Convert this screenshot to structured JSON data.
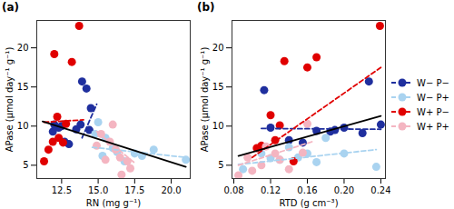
{
  "chart_data": [
    {
      "type": "scatter",
      "title": "(a)",
      "x_label": "RN (mg g⁻¹)",
      "y_label": "APase (µmol day⁻¹ g⁻¹)",
      "xlim": [
        10.8,
        21.3
      ],
      "xticks": [
        12.5,
        {
          "value": 15,
          "label": "15.0"
        },
        17.5,
        {
          "value": 20,
          "label": "20.0"
        }
      ],
      "ylim": [
        3.3,
        23.5
      ],
      "yticks": [
        5,
        10,
        15,
        20
      ],
      "series": [
        {
          "name": "W− P−",
          "color": "#1f2f9e",
          "marker": "circle",
          "x": [
            13.9,
            14.2,
            14.5,
            13.8,
            12.5,
            12.3,
            12.0,
            11.9,
            12.7,
            13.0,
            13.5,
            14.4
          ],
          "y": [
            15.7,
            14.8,
            12.3,
            10.2,
            10.0,
            9.8,
            10.2,
            9.3,
            8.0,
            7.7,
            9.6,
            9.5
          ],
          "fit": {
            "x": [
              13.9,
              14.9
            ],
            "y": [
              8.5,
              12.8
            ]
          },
          "line_style": "dashed"
        },
        {
          "name": "W− P+",
          "color": "#a9d3f0",
          "marker": "circle",
          "x": [
            15.0,
            14.8,
            15.5,
            16.0,
            16.3,
            17.5,
            18.0,
            18.8,
            21.0,
            15.3,
            16.8
          ],
          "y": [
            10.5,
            9.0,
            8.5,
            7.2,
            6.7,
            6.5,
            6.2,
            7.0,
            5.7,
            6.2,
            5.5
          ],
          "fit": {
            "x": [
              14.6,
              21.0
            ],
            "y": [
              7.3,
              6.0
            ]
          },
          "line_style": "dashed"
        },
        {
          "name": "W+ P−",
          "color": "#e00000",
          "marker": "circle",
          "x": [
            13.7,
            12.0,
            13.2,
            11.3,
            12.2,
            12.3,
            12.6,
            11.6,
            12.8,
            11.9
          ],
          "y": [
            22.8,
            19.2,
            18.2,
            5.5,
            11.2,
            8.5,
            7.9,
            7.0,
            10.3,
            8.0
          ],
          "fit": {
            "x": [
              11.3,
              14.0
            ],
            "y": [
              10.5,
              10.8
            ]
          },
          "line_style": "dashed"
        },
        {
          "name": "W+ P+",
          "color": "#f4b5c1",
          "marker": "circle",
          "x": [
            15.2,
            15.8,
            16.2,
            16.5,
            17.0,
            14.9,
            17.2,
            16.6,
            15.5,
            16.0
          ],
          "y": [
            9.0,
            8.0,
            7.0,
            6.0,
            5.5,
            7.5,
            4.6,
            3.8,
            5.7,
            10.2
          ],
          "fit": {
            "x": [
              14.9,
              17.5
            ],
            "y": [
              9.3,
              5.3
            ]
          },
          "line_style": "dashed"
        }
      ],
      "overall_fit": {
        "x": [
          11.2,
          21.0
        ],
        "y": [
          10.6,
          4.8
        ],
        "color": "#000000",
        "line_style": "solid"
      }
    },
    {
      "type": "scatter",
      "title": "(b)",
      "x_label": "RTD (g cm⁻³)",
      "y_label": "APase (µmol day⁻¹ g⁻¹)",
      "xlim": [
        0.078,
        0.245
      ],
      "xticks": [
        0.08,
        0.12,
        0.16,
        {
          "value": 0.2,
          "label": "0.20"
        },
        0.24
      ],
      "ylim": [
        3.3,
        23.5
      ],
      "yticks": [
        5,
        10,
        15,
        20
      ],
      "legend": "right",
      "series": [
        {
          "name": "W− P−",
          "color": "#1f2f9e",
          "marker": "circle",
          "x": [
            0.113,
            0.227,
            0.24,
            0.2,
            0.19,
            0.17,
            0.12,
            0.14,
            0.155,
            0.185,
            0.22
          ],
          "y": [
            14.6,
            15.7,
            10.2,
            9.8,
            9.5,
            9.4,
            9.8,
            8.2,
            7.9,
            9.3,
            9.1
          ],
          "fit": {
            "x": [
              0.11,
              0.24
            ],
            "y": [
              9.7,
              9.6
            ]
          },
          "line_style": "dashed"
        },
        {
          "name": "W− P+",
          "color": "#a9d3f0",
          "marker": "circle",
          "x": [
            0.11,
            0.12,
            0.13,
            0.15,
            0.16,
            0.18,
            0.2,
            0.235,
            0.14,
            0.09,
            0.17
          ],
          "y": [
            6.5,
            5.9,
            5.7,
            6.0,
            6.5,
            8.5,
            6.5,
            4.8,
            7.3,
            4.5,
            5.4
          ],
          "fit": {
            "x": [
              0.085,
              0.235
            ],
            "y": [
              5.1,
              7.0
            ]
          },
          "line_style": "dashed"
        },
        {
          "name": "W+ P−",
          "color": "#e00000",
          "marker": "circle",
          "x": [
            0.239,
            0.135,
            0.16,
            0.17,
            0.12,
            0.11,
            0.125,
            0.105,
            0.13,
            0.145
          ],
          "y": [
            22.8,
            18.3,
            17.5,
            18.8,
            11.4,
            7.5,
            8.2,
            7.2,
            10.1,
            5.5
          ],
          "fit": {
            "x": [
              0.1,
              0.24
            ],
            "y": [
              6.0,
              17.5
            ]
          },
          "line_style": "dashed"
        },
        {
          "name": "W+ P+",
          "color": "#f4b5c1",
          "marker": "circle",
          "x": [
            0.085,
            0.1,
            0.11,
            0.115,
            0.125,
            0.13,
            0.14,
            0.155,
            0.16,
            0.095
          ],
          "y": [
            3.7,
            4.3,
            5.0,
            7.4,
            6.5,
            5.7,
            4.5,
            6.6,
            10.3,
            6.0
          ],
          "fit": {
            "x": [
              0.085,
              0.165
            ],
            "y": [
              5.0,
              8.0
            ]
          },
          "line_style": "dashed"
        }
      ],
      "overall_fit": {
        "x": [
          0.085,
          0.24
        ],
        "y": [
          6.2,
          11.3
        ],
        "color": "#000000",
        "line_style": "solid"
      }
    }
  ]
}
